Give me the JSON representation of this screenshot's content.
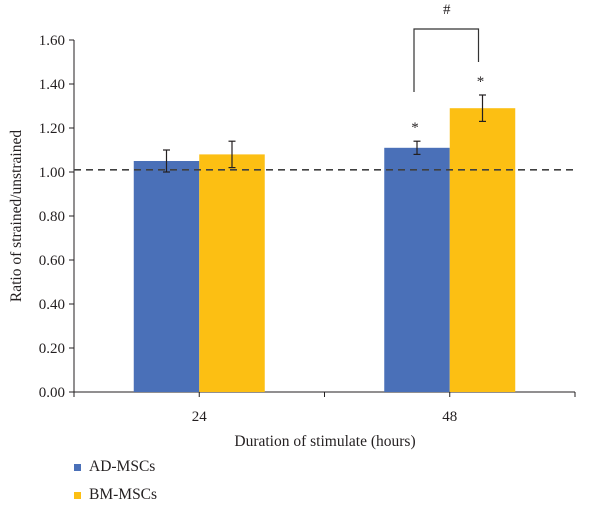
{
  "chart_data": {
    "type": "bar",
    "title": "",
    "xlabel": "Duration of stimulate (hours)",
    "ylabel": "Ratio of strained/unstrained",
    "categories": [
      "24",
      "48"
    ],
    "ylim": [
      0,
      1.6
    ],
    "yticks": [
      0,
      0.2,
      0.4,
      0.6,
      0.8,
      1.0,
      1.2,
      1.4,
      1.6
    ],
    "ytick_labels": [
      "0.00",
      "0.20",
      "0.40",
      "0.60",
      "0.80",
      "1.00",
      "1.20",
      "1.40",
      "1.60"
    ],
    "grid": false,
    "reference_line": {
      "value": 1.01,
      "style": "dashed"
    },
    "series": [
      {
        "name": "AD-MSCs",
        "color": "#4a70b8",
        "values": [
          1.05,
          1.11
        ],
        "errors": [
          0.05,
          0.03
        ],
        "annotations": [
          "",
          "*"
        ]
      },
      {
        "name": "BM-MSCs",
        "color": "#fcbf13",
        "values": [
          1.08,
          1.29
        ],
        "errors": [
          0.06,
          0.06
        ],
        "annotations": [
          "",
          "*"
        ]
      }
    ],
    "significance_bracket": {
      "category": "48",
      "between": [
        "AD-MSCs",
        "BM-MSCs"
      ],
      "label": "#"
    },
    "legend": {
      "position": "bottom-left",
      "entries": [
        "AD-MSCs",
        "BM-MSCs"
      ]
    }
  }
}
